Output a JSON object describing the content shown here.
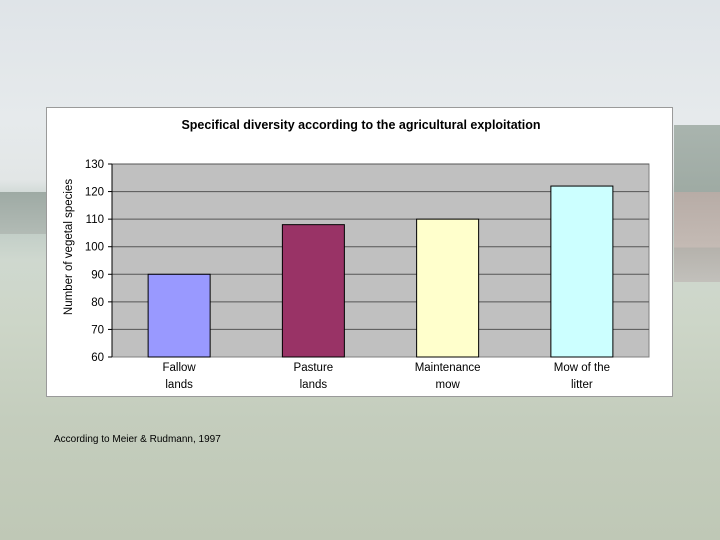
{
  "slide": {
    "source_note": "According to Meier & Rudmann, 1997"
  },
  "chart_data": {
    "type": "bar",
    "title": "Specifical diversity according to the agricultural exploitation",
    "xlabel": "",
    "ylabel": "Number of vegetal species",
    "ylim": [
      60,
      130
    ],
    "yticks": [
      60,
      70,
      80,
      90,
      100,
      110,
      120,
      130
    ],
    "grid": true,
    "categories": [
      [
        "Fallow",
        "lands"
      ],
      [
        "Pasture",
        "lands"
      ],
      [
        "Maintenance",
        "mow"
      ],
      [
        "Mow  of the",
        "litter"
      ]
    ],
    "values": [
      90,
      108,
      110,
      122
    ],
    "bar_colors": [
      "#9999ff",
      "#993366",
      "#ffffcc",
      "#ccffff"
    ],
    "plot_background": "#c0c0c0"
  }
}
